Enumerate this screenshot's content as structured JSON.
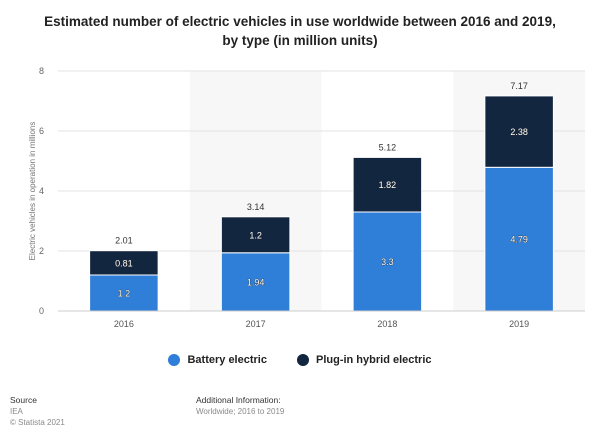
{
  "title": "Estimated number of electric vehicles in use worldwide between 2016 and 2019, by type (in million units)",
  "chart_data": {
    "type": "bar",
    "stacked": true,
    "categories": [
      "2016",
      "2017",
      "2018",
      "2019"
    ],
    "series": [
      {
        "name": "Battery electric",
        "color": "#2f7ed8",
        "values": [
          1.2,
          1.94,
          3.3,
          4.79
        ]
      },
      {
        "name": "Plug-in hybrid electric",
        "color": "#13263f",
        "values": [
          0.81,
          1.2,
          1.82,
          2.38
        ]
      }
    ],
    "totals": [
      "2.01",
      "3.14",
      "5.12",
      "7.17"
    ],
    "segment_labels": [
      [
        "1.2",
        "1.94",
        "3.3",
        "4.79"
      ],
      [
        "0.81",
        "1.2",
        "1.82",
        "2.38"
      ]
    ],
    "ylabel": "Electric vehicles in operation in millions",
    "ylim": [
      0,
      8
    ],
    "yticks": [
      0,
      2,
      4,
      6,
      8
    ],
    "grid": true,
    "legend_position": "bottom-center"
  },
  "legend": {
    "item1": "Battery electric",
    "item2": "Plug-in hybrid electric"
  },
  "footer": {
    "source_heading": "Source",
    "source_name": "IEA",
    "copyright": "© Statista 2021",
    "additional_heading": "Additional Information:",
    "additional_text": "Worldwide; 2016 to 2019"
  }
}
